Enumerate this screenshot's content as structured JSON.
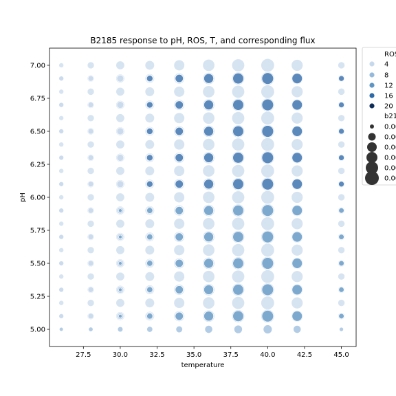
{
  "chart_data": {
    "type": "scatter",
    "title": "B2185 response to pH, ROS, T, and corresponding flux",
    "xlabel": "temperature",
    "ylabel": "pH",
    "xlim": [
      25.2,
      46.0
    ],
    "ylim": [
      4.87,
      7.13
    ],
    "x_ticks": [
      27.5,
      30.0,
      32.5,
      35.0,
      37.5,
      40.0,
      42.5,
      45.0
    ],
    "x_tick_labels": [
      "27.5",
      "30.0",
      "32.5",
      "35.0",
      "37.5",
      "40.0",
      "42.5",
      "45.0"
    ],
    "y_ticks": [
      5.0,
      5.25,
      5.5,
      5.75,
      6.0,
      6.25,
      6.5,
      6.75,
      7.0
    ],
    "y_tick_labels": [
      "5.00",
      "5.25",
      "5.50",
      "5.75",
      "6.00",
      "6.25",
      "6.50",
      "6.75",
      "7.00"
    ],
    "grid": false,
    "legend_position": "outside-right",
    "temperatures": [
      26,
      28,
      30,
      32,
      34,
      36,
      38,
      40,
      42,
      45
    ],
    "ph_values": [
      5.0,
      5.1,
      5.2,
      5.3,
      5.4,
      5.5,
      5.6,
      5.7,
      5.8,
      5.9,
      6.0,
      6.1,
      6.2,
      6.3,
      6.4,
      6.5,
      6.6,
      6.7,
      6.8,
      6.9,
      7.0
    ],
    "ros_levels": [
      4,
      8,
      12,
      16,
      20
    ],
    "ros_colors": [
      "#c6d8ec",
      "#94b9db",
      "#5f95c3",
      "#2f6aa8",
      "#0e2c55"
    ],
    "series": [
      {
        "ros": 4,
        "radius_by_temp": [
          3.5,
          5.0,
          6.2,
          6.8,
          7.8,
          8.7,
          9.2,
          9.7,
          8.4,
          5.0
        ],
        "ph_exclude": [
          5.0
        ]
      },
      {
        "ros": 4,
        "radius_by_temp": [
          3.5,
          4.0,
          5.0,
          5.5,
          6.3,
          7.2,
          7.7,
          8.2,
          7.2,
          4.0
        ],
        "ph_only": [
          5.1,
          5.3,
          5.5,
          5.7,
          5.9,
          6.1,
          6.3,
          6.5,
          6.7,
          6.9
        ]
      },
      {
        "ros": 8,
        "radius_by_temp": [
          2.8,
          3.2,
          3.8,
          4.2,
          4.8,
          5.6,
          6.0,
          6.4,
          5.6,
          3.0
        ],
        "ph_only": [
          5.0
        ]
      },
      {
        "ros": 12,
        "radius_by_temp": [
          0,
          0,
          2.5,
          4.2,
          5.8,
          7.0,
          7.8,
          8.4,
          7.4,
          3.8
        ],
        "ph_only": [
          5.1,
          5.3,
          5.5,
          5.7,
          5.9
        ]
      },
      {
        "ros": 16,
        "radius_by_temp": [
          0,
          0,
          0,
          4.5,
          5.8,
          7.0,
          7.8,
          8.4,
          7.4,
          4.0
        ],
        "ph_only": [
          6.1,
          6.3,
          6.5,
          6.7,
          6.9
        ]
      }
    ],
    "legend": {
      "ros_title": "ROS",
      "ros_labels": [
        "4",
        "8",
        "12",
        "16",
        "20"
      ],
      "size_title": "b21",
      "size_labels": [
        "0.00",
        "0.00",
        "0.00",
        "0.00",
        "0.00",
        "0.00"
      ]
    }
  }
}
